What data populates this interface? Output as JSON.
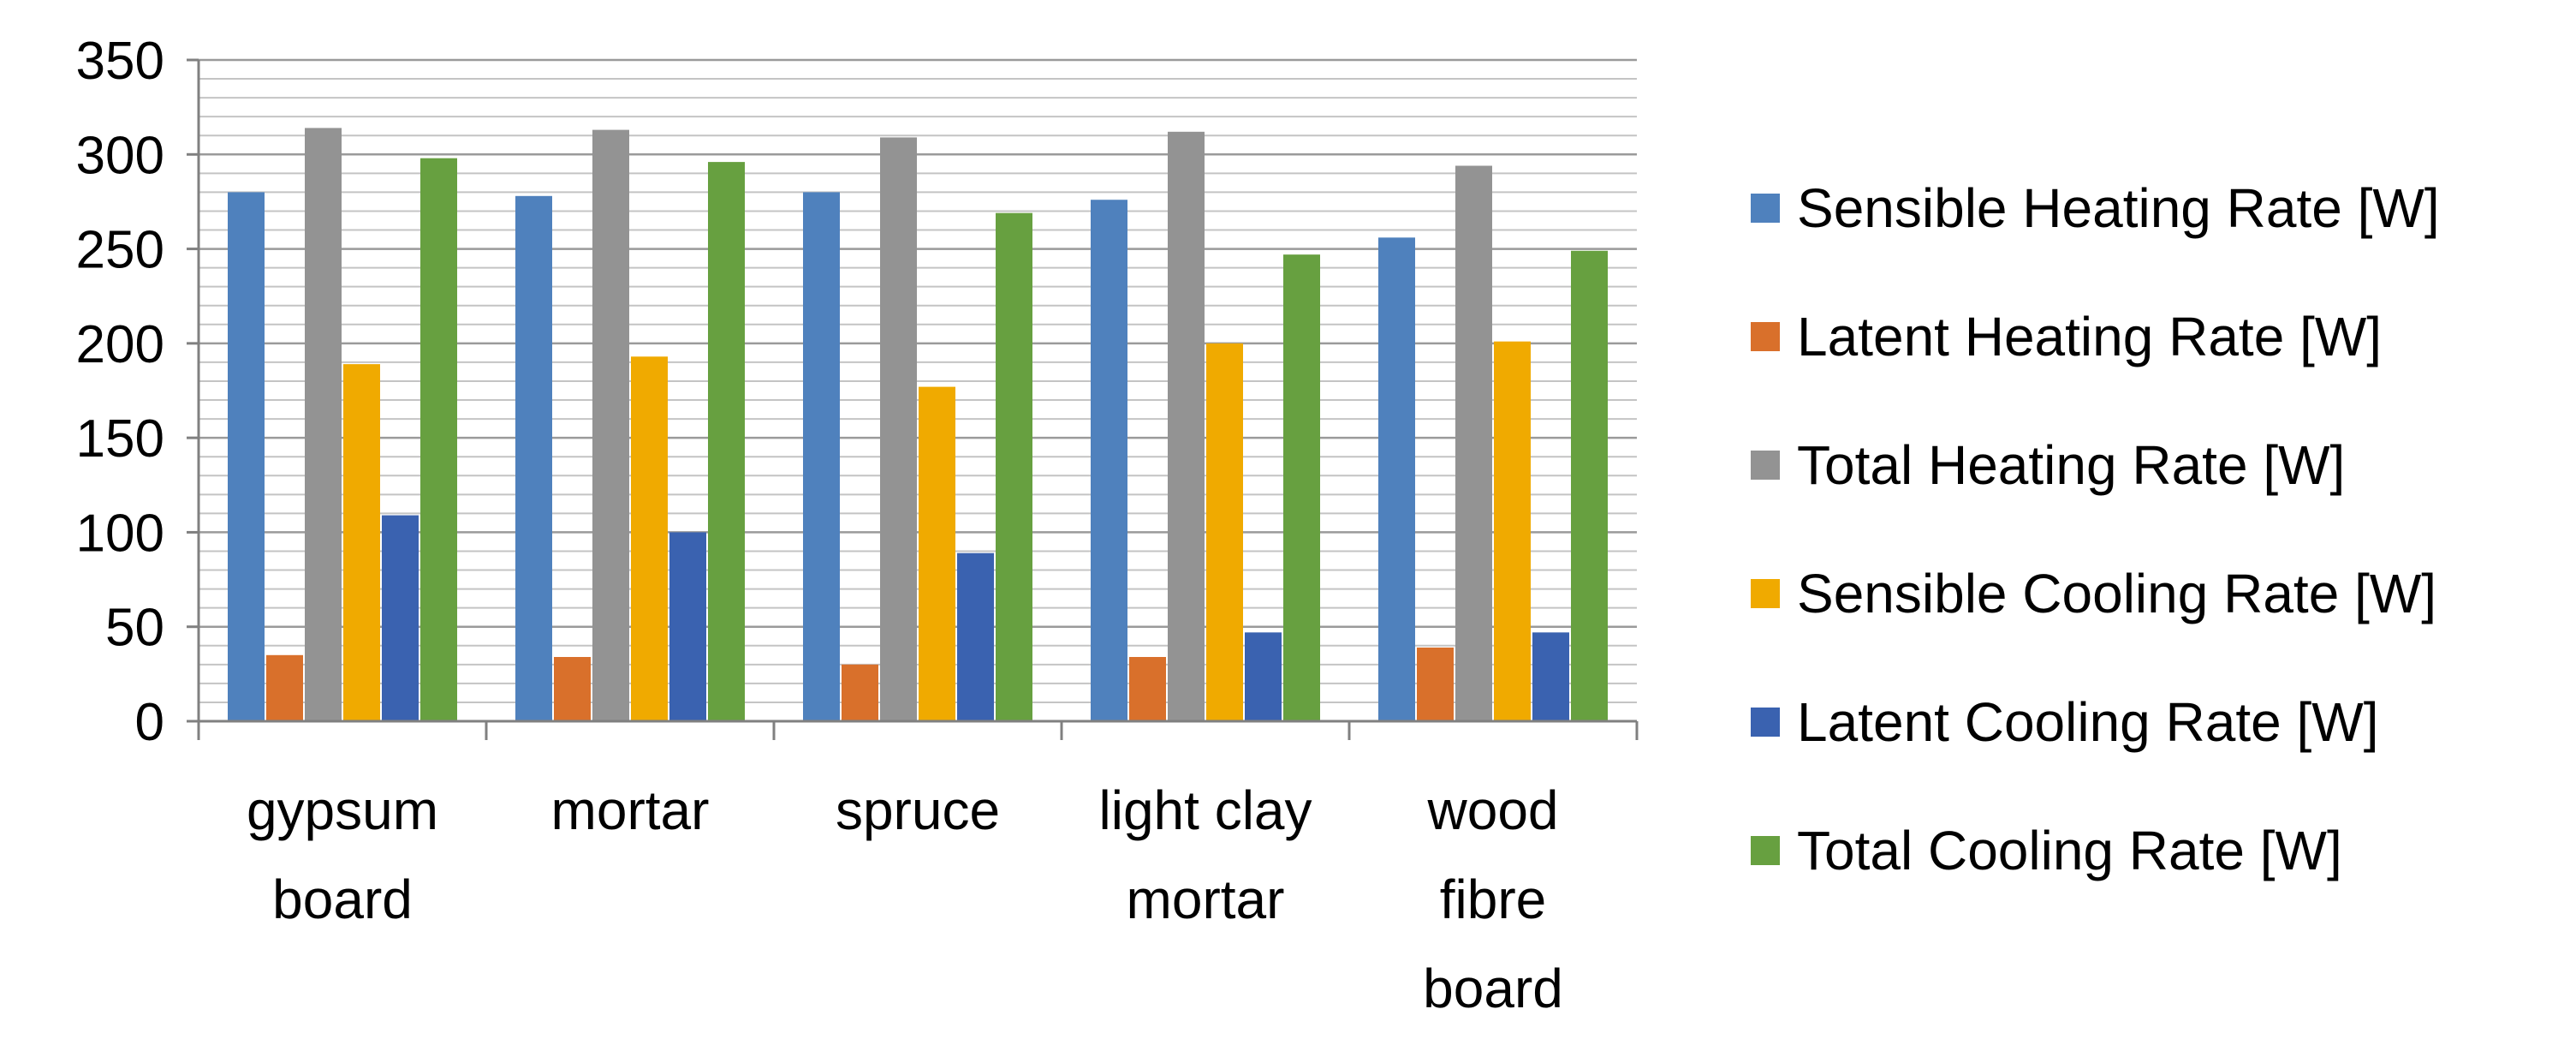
{
  "chart_data": {
    "type": "bar",
    "categories": [
      [
        "gypsum",
        "board"
      ],
      [
        "mortar"
      ],
      [
        "spruce"
      ],
      [
        "light clay",
        "mortar"
      ],
      [
        "wood",
        "fibre",
        "board"
      ]
    ],
    "series": [
      {
        "name": "Sensible Heating Rate [W]",
        "color": "#4f81bd",
        "values": [
          280,
          278,
          280,
          276,
          256
        ]
      },
      {
        "name": "Latent Heating Rate [W]",
        "color": "#d9702b",
        "values": [
          35,
          34,
          30,
          34,
          39
        ]
      },
      {
        "name": "Total Heating Rate [W]",
        "color": "#939393",
        "values": [
          314,
          313,
          309,
          312,
          294
        ]
      },
      {
        "name": "Sensible Cooling Rate [W]",
        "color": "#f0aa00",
        "values": [
          189,
          193,
          177,
          200,
          201
        ]
      },
      {
        "name": "Latent Cooling Rate [W]",
        "color": "#3a62b0",
        "values": [
          109,
          100,
          89,
          47,
          47
        ]
      },
      {
        "name": "Total Cooling Rate [W]",
        "color": "#67a040",
        "values": [
          298,
          296,
          269,
          247,
          249
        ]
      }
    ],
    "yticks": [
      "0",
      "50",
      "100",
      "150",
      "200",
      "250",
      "300",
      "350"
    ],
    "ylim": [
      0,
      350
    ],
    "minor_grid_step": 10,
    "legend_position": "right"
  }
}
